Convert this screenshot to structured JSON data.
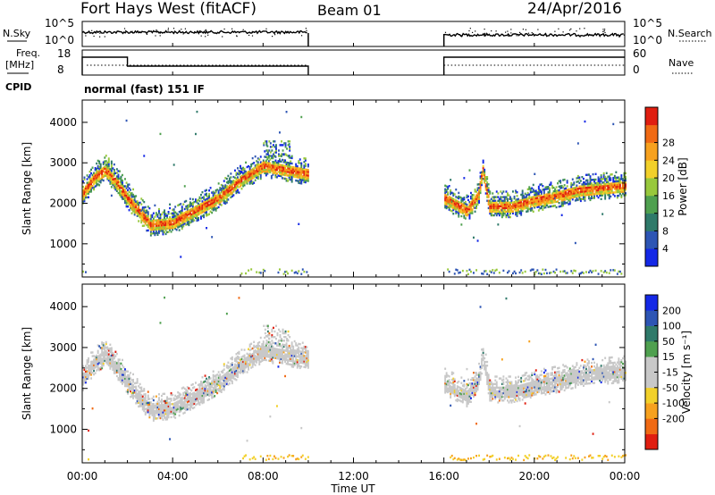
{
  "header": {
    "station": "Fort Hays West (fitACF)",
    "beam": "Beam 01",
    "date": "24/Apr/2016"
  },
  "strip_labels": {
    "nsky": "N.Sky",
    "nsky_ticks": [
      "10^5",
      "10^0"
    ],
    "nsearch": "N.Search",
    "nsearch_ticks": [
      "10^5",
      "10^0"
    ],
    "freq": "Freq.",
    "freq_unit": "[MHz]",
    "freq_ticks": [
      "18",
      "8"
    ],
    "nave": "Nave",
    "nave_ticks": [
      "60",
      "0"
    ],
    "cpid": "CPID",
    "cpid_text": "normal (fast) 151 IF"
  },
  "colors": {
    "power": [
      "#1428e6",
      "#2d55b4",
      "#2f7a6a",
      "#4fa04f",
      "#98c83c",
      "#f2d02a",
      "#f7a11e",
      "#f06a14",
      "#e01e10"
    ],
    "velocity": [
      "#e01e10",
      "#f06a14",
      "#f7a11e",
      "#f2d02a",
      "#c8c8c8",
      "#c8c8c8",
      "#4fa04f",
      "#2f7a6a",
      "#2d55b4",
      "#1428e6"
    ]
  },
  "chart_data": [
    {
      "type": "heatmap",
      "name": "power",
      "ylabel": "Slant Range [km]",
      "ylim": [
        180,
        4550
      ],
      "yticks": [
        "1000",
        "2000",
        "3000",
        "4000"
      ],
      "xlim_hours": [
        0,
        24
      ],
      "colorbar_label": "Power [dB]",
      "colorbar_ticks": [
        "4",
        "8",
        "12",
        "16",
        "20",
        "24",
        "28"
      ],
      "data_gap_hours": [
        10,
        16
      ],
      "echo_band": {
        "hours": [
          0,
          0.5,
          1.0,
          1.5,
          2.0,
          3.0,
          4.0,
          5.0,
          6.0,
          7.0,
          8.0,
          16.0,
          16.5,
          17.0,
          17.5,
          17.7,
          18.0,
          19.0,
          20.0,
          21.0,
          22.0,
          23.0,
          24.0
        ],
        "slant_range_km": [
          2200,
          2600,
          2800,
          2500,
          2100,
          1450,
          1500,
          1800,
          2100,
          2550,
          2900,
          2100,
          1950,
          1800,
          2150,
          2800,
          1900,
          1900,
          2050,
          2150,
          2300,
          2350,
          2400
        ]
      }
    },
    {
      "type": "heatmap",
      "name": "velocity",
      "ylabel": "Slant Range [km]",
      "ylim": [
        180,
        4550
      ],
      "yticks": [
        "1000",
        "2000",
        "3000",
        "4000"
      ],
      "xlabel": "Time UT",
      "xticks": [
        "00:00",
        "04:00",
        "08:00",
        "12:00",
        "16:00",
        "20:00",
        "00:00"
      ],
      "colorbar_label": "Velocity [m s⁻¹]",
      "colorbar_ticks": [
        "200",
        "100",
        "50",
        "15",
        "-15",
        "-50",
        "-100",
        "-200"
      ],
      "data_gap_hours": [
        10,
        16
      ]
    }
  ]
}
